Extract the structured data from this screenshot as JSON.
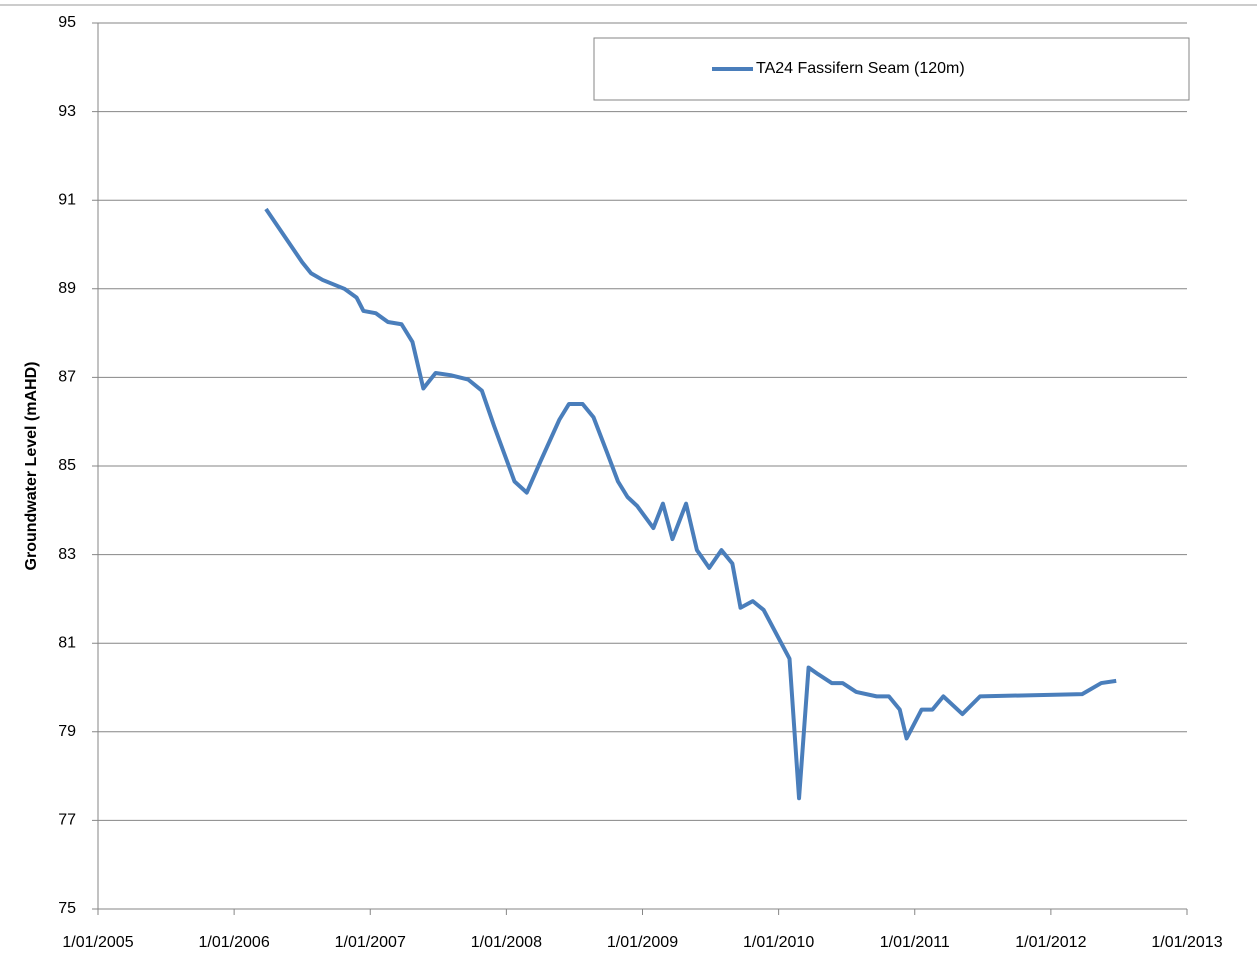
{
  "chart_data": {
    "type": "line",
    "ylabel": "Groundwater Level (mAHD)",
    "x": [
      2006.234,
      2006.5,
      2006.565,
      2006.65,
      2006.81,
      2006.9,
      2006.95,
      2007.04,
      2007.13,
      2007.23,
      2007.31,
      2007.39,
      2007.48,
      2007.59,
      2007.72,
      2007.82,
      2007.91,
      2008.06,
      2008.15,
      2008.25,
      2008.39,
      2008.46,
      2008.56,
      2008.64,
      2008.74,
      2008.82,
      2008.89,
      2008.96,
      2009.08,
      2009.15,
      2009.22,
      2009.32,
      2009.4,
      2009.49,
      2009.58,
      2009.66,
      2009.72,
      2009.81,
      2009.89,
      2010.08,
      2010.15,
      2010.22,
      2010.29,
      2010.39,
      2010.47,
      2010.57,
      2010.72,
      2010.81,
      2010.89,
      2010.94,
      2011.05,
      2011.13,
      2011.21,
      2011.35,
      2011.48,
      2012.23,
      2012.37,
      2012.48
    ],
    "series": [
      {
        "name": "TA24 Fassifern Seam (120m)",
        "color": "#4a7ebb",
        "values": [
          90.8,
          89.6,
          89.35,
          89.2,
          89.0,
          88.8,
          88.5,
          88.45,
          88.25,
          88.2,
          87.8,
          86.75,
          87.1,
          87.05,
          86.95,
          86.7,
          85.9,
          84.65,
          84.4,
          85.1,
          86.05,
          86.4,
          86.4,
          86.1,
          85.3,
          84.65,
          84.3,
          84.1,
          83.6,
          84.15,
          83.35,
          84.15,
          83.1,
          82.7,
          83.1,
          82.8,
          81.8,
          81.95,
          81.75,
          80.65,
          77.5,
          80.45,
          80.3,
          80.1,
          80.1,
          79.9,
          79.8,
          79.8,
          79.5,
          78.85,
          79.5,
          79.5,
          79.8,
          79.4,
          79.8,
          79.85,
          80.1,
          80.15
        ]
      }
    ],
    "xlim": [
      2005,
      2013
    ],
    "xticks": [
      {
        "value": 2005,
        "label": "1/01/2005"
      },
      {
        "value": 2006,
        "label": "1/01/2006"
      },
      {
        "value": 2007,
        "label": "1/01/2007"
      },
      {
        "value": 2008,
        "label": "1/01/2008"
      },
      {
        "value": 2009,
        "label": "1/01/2009"
      },
      {
        "value": 2010,
        "label": "1/01/2010"
      },
      {
        "value": 2011,
        "label": "1/01/2011"
      },
      {
        "value": 2012,
        "label": "1/01/2012"
      },
      {
        "value": 2013,
        "label": "1/01/2013"
      }
    ],
    "ylim": [
      75,
      95
    ],
    "yticks": [
      75,
      77,
      79,
      81,
      83,
      85,
      87,
      89,
      91,
      93,
      95
    ],
    "grid": true,
    "legend": "upper right"
  }
}
